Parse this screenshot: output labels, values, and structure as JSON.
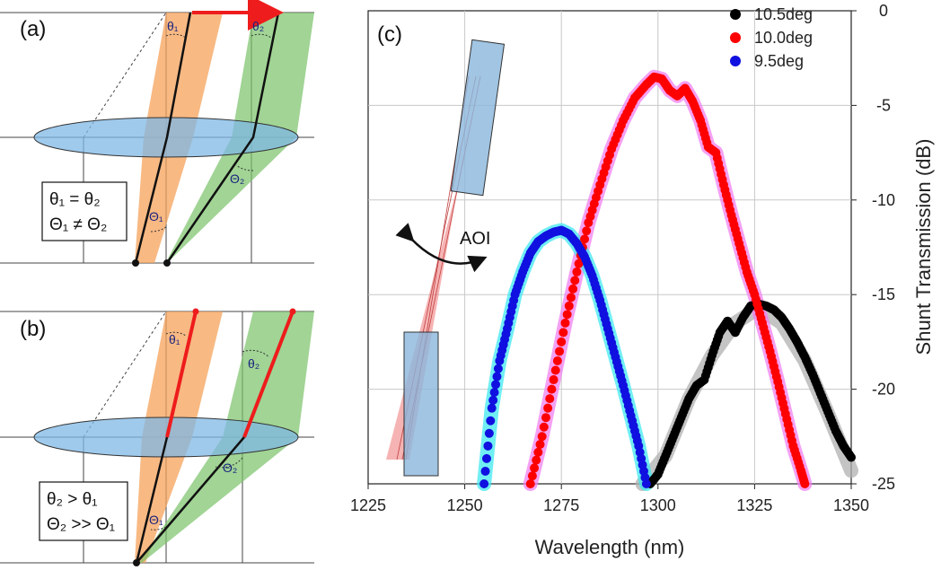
{
  "panels": {
    "a": {
      "tag": "(a)",
      "box_line1": "θ₁ = θ₂",
      "box_line2": "Θ₁ ≠ Θ₂",
      "angle_labels": [
        "θ₁",
        "θ₂",
        "Θ₂",
        "Θ₁"
      ]
    },
    "b": {
      "tag": "(b)",
      "box_line1": "θ₂ > θ₁",
      "box_line2": "Θ₂ >> Θ₁",
      "angle_labels": [
        "θ₁",
        "θ₂",
        "Θ₂",
        "Θ₁"
      ]
    },
    "c": {
      "tag": "(c)",
      "aoi_label": "AOI"
    }
  },
  "colors": {
    "beam_orange": "#f5a25a",
    "beam_green": "#79c268",
    "lens_blue": "#7fb8e6",
    "highlight_red": "#ee1c1c",
    "black_series": "#000000",
    "red_series": "#ff0000",
    "blue_series": "#1010e0",
    "black_fit": "#b0b0b0",
    "red_fit": "#f080f0",
    "blue_fit": "#40e8f0"
  },
  "chart_data": {
    "type": "scatter",
    "xlabel": "Wavelength (nm)",
    "ylabel": "Shunt Transmission (dB)",
    "xlim": [
      1225,
      1350
    ],
    "ylim": [
      -25,
      0
    ],
    "xticks": [
      1225,
      1250,
      1275,
      1300,
      1325,
      1350
    ],
    "yticks": [
      0,
      -5,
      -10,
      -15,
      -20,
      -25
    ],
    "grid": true,
    "legend_position": "top-right",
    "series": [
      {
        "name": "10.5deg",
        "color": "#000000",
        "fit_color": "#b0b0b0",
        "x": [
          1298,
          1300,
          1302,
          1304,
          1306,
          1308,
          1310,
          1312,
          1314,
          1316,
          1318,
          1320,
          1322,
          1324,
          1326,
          1328,
          1330,
          1332,
          1334,
          1336,
          1338,
          1340,
          1342,
          1344,
          1346,
          1348,
          1350
        ],
        "y": [
          -25,
          -24.5,
          -23.5,
          -22.5,
          -21.5,
          -20.5,
          -19.8,
          -19.5,
          -18.2,
          -17.0,
          -16.4,
          -17.0,
          -16.2,
          -15.6,
          -15.5,
          -15.6,
          -15.8,
          -16.2,
          -16.8,
          -17.5,
          -18.3,
          -19.2,
          -20.2,
          -21.2,
          -22.2,
          -23.0,
          -23.6
        ],
        "fit_x": [
          1296,
          1302,
          1308,
          1314,
          1320,
          1326,
          1332,
          1338,
          1344,
          1350
        ],
        "fit_y": [
          -25,
          -23.5,
          -20.5,
          -18.2,
          -16.5,
          -15.7,
          -16.5,
          -18.5,
          -21.3,
          -24.3
        ]
      },
      {
        "name": "10.0deg",
        "color": "#ff0000",
        "fit_color": "#f080f0",
        "x": [
          1267,
          1270,
          1273,
          1276,
          1279,
          1282,
          1285,
          1288,
          1291,
          1294,
          1297,
          1299,
          1301,
          1303,
          1305,
          1307,
          1309,
          1311,
          1313,
          1315,
          1317,
          1319,
          1321,
          1323,
          1325,
          1327,
          1329,
          1331,
          1333,
          1335,
          1337,
          1338
        ],
        "y": [
          -25,
          -22.5,
          -19.5,
          -16.5,
          -13.8,
          -11.2,
          -9.2,
          -7.3,
          -5.8,
          -4.6,
          -3.9,
          -3.5,
          -3.6,
          -4.2,
          -4.5,
          -4.1,
          -4.8,
          -5.8,
          -7.2,
          -7.5,
          -9.2,
          -10.8,
          -12.3,
          -13.8,
          -15.0,
          -16.5,
          -18.0,
          -19.6,
          -21.3,
          -23.0,
          -24.3,
          -25
        ]
      },
      {
        "name": "9.5deg",
        "color": "#1010e0",
        "fit_color": "#40e8f0",
        "x": [
          1255,
          1257,
          1259,
          1261,
          1263,
          1265,
          1267,
          1269,
          1271,
          1273,
          1275,
          1277,
          1279,
          1281,
          1283,
          1285,
          1287,
          1289,
          1291,
          1293,
          1295,
          1297
        ],
        "y": [
          -25,
          -21.0,
          -18.5,
          -16.8,
          -15.0,
          -13.8,
          -12.8,
          -12.2,
          -11.9,
          -11.7,
          -11.6,
          -11.8,
          -12.3,
          -13.0,
          -14.0,
          -15.3,
          -16.8,
          -18.3,
          -19.8,
          -21.4,
          -23.0,
          -25
        ]
      }
    ]
  }
}
